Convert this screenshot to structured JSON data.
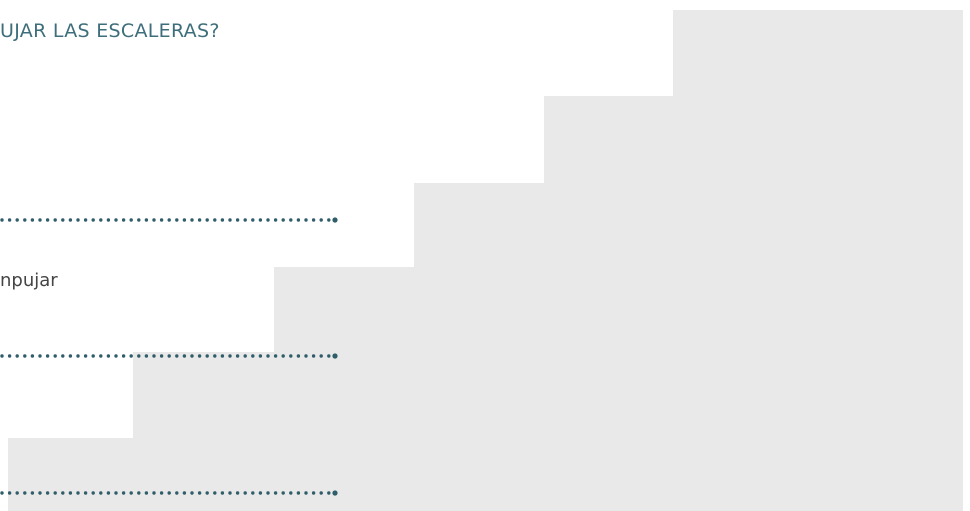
{
  "heading": "UJAR LAS ESCALERAS?",
  "items": [
    {
      "label": "npujar"
    }
  ]
}
